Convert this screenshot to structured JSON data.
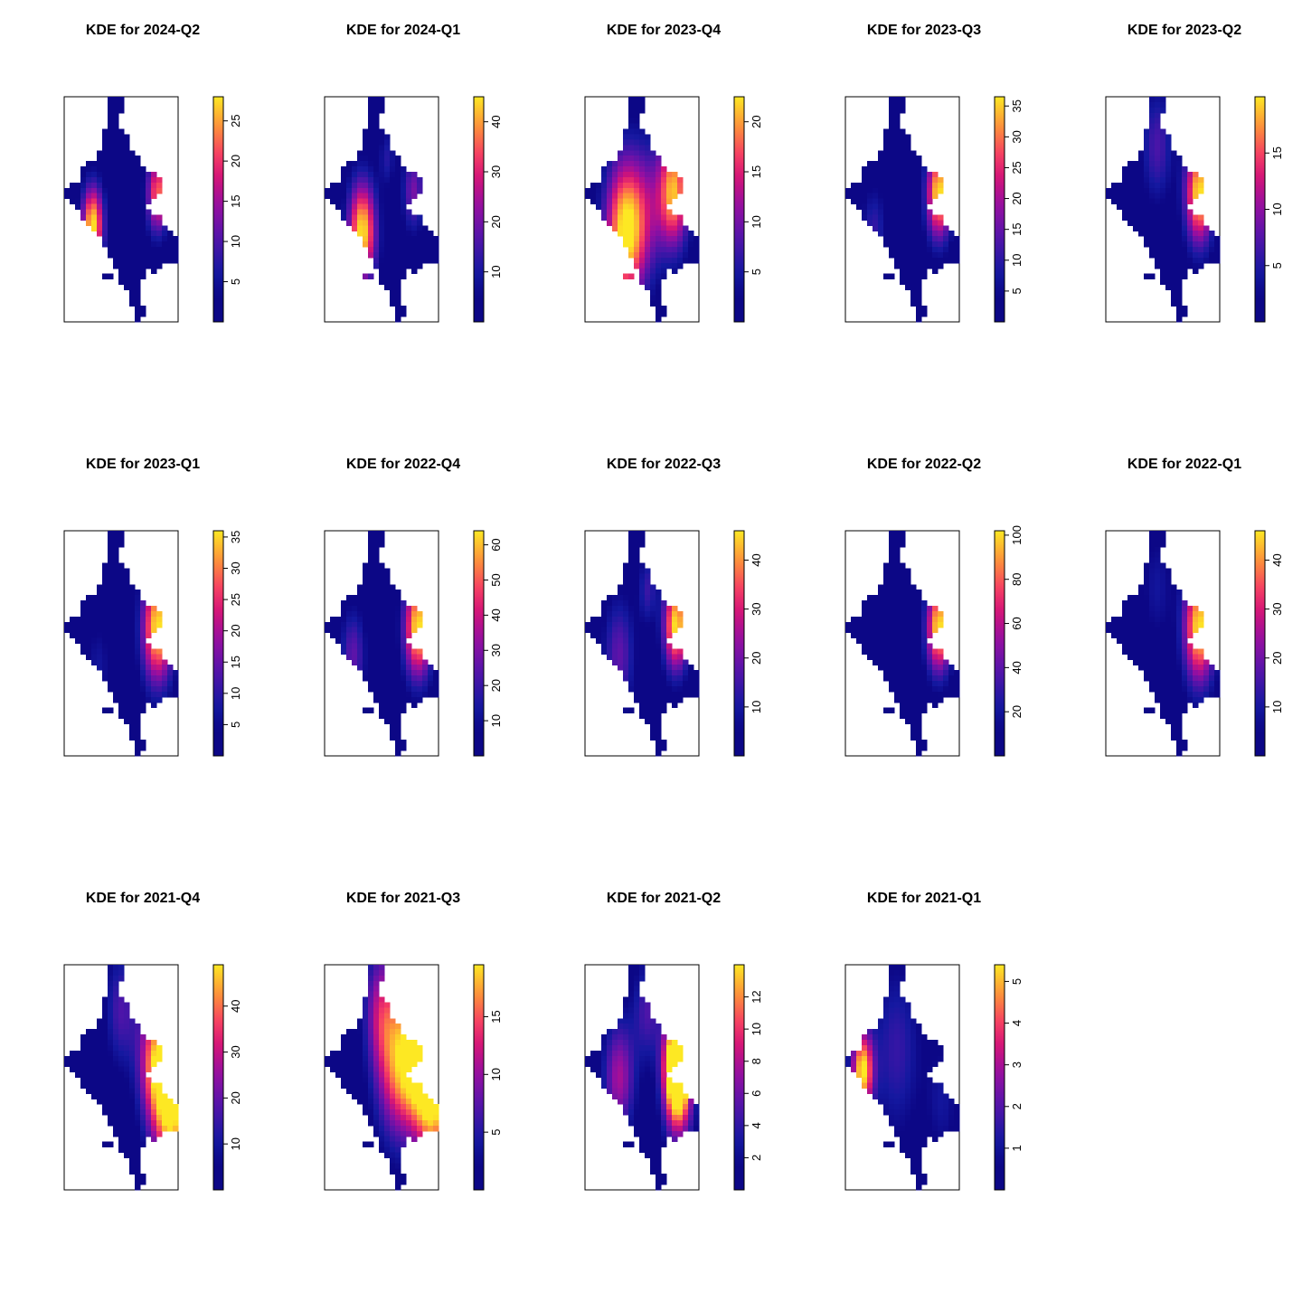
{
  "chart_data": [
    {
      "type": "heatmap",
      "title": "KDE for 2024-Q2",
      "ticks": [
        5,
        10,
        15,
        20,
        25
      ],
      "zlim": [
        0,
        28
      ],
      "hotspots": [
        {
          "x": 0.25,
          "y": 0.57,
          "s": 0.07,
          "w": 1.0
        },
        {
          "x": 0.82,
          "y": 0.43,
          "s": 0.07,
          "w": 0.8
        }
      ]
    },
    {
      "type": "heatmap",
      "title": "KDE for 2024-Q1",
      "ticks": [
        10,
        20,
        30,
        40
      ],
      "zlim": [
        0,
        45
      ],
      "hotspots": [
        {
          "x": 0.33,
          "y": 0.6,
          "s": 0.09,
          "w": 1.0
        },
        {
          "x": 0.78,
          "y": 0.42,
          "s": 0.07,
          "w": 0.45
        },
        {
          "x": 0.55,
          "y": 0.27,
          "s": 0.05,
          "w": 0.25
        }
      ]
    },
    {
      "type": "heatmap",
      "title": "KDE for 2023-Q4",
      "ticks": [
        5,
        10,
        15,
        20
      ],
      "zlim": [
        0,
        22.5
      ],
      "hotspots": [
        {
          "x": 0.35,
          "y": 0.6,
          "s": 0.13,
          "w": 1.0
        },
        {
          "x": 0.78,
          "y": 0.42,
          "s": 0.1,
          "w": 0.9
        },
        {
          "x": 0.55,
          "y": 0.5,
          "s": 0.12,
          "w": 0.3
        }
      ]
    },
    {
      "type": "heatmap",
      "title": "KDE for 2023-Q3",
      "ticks": [
        5,
        10,
        15,
        20,
        25,
        30,
        35
      ],
      "zlim": [
        0,
        36.5
      ],
      "hotspots": [
        {
          "x": 0.82,
          "y": 0.43,
          "s": 0.08,
          "w": 1.0
        },
        {
          "x": 0.25,
          "y": 0.6,
          "s": 0.08,
          "w": 0.3
        }
      ]
    },
    {
      "type": "heatmap",
      "title": "KDE for 2023-Q2",
      "ticks": [
        5,
        10,
        15
      ],
      "zlim": [
        0,
        20
      ],
      "hotspots": [
        {
          "x": 0.82,
          "y": 0.43,
          "s": 0.09,
          "w": 1.0
        },
        {
          "x": 0.45,
          "y": 0.22,
          "s": 0.1,
          "w": 0.35
        }
      ]
    },
    {
      "type": "heatmap",
      "title": "KDE for 2023-Q1",
      "ticks": [
        5,
        10,
        15,
        20,
        25,
        30,
        35
      ],
      "zlim": [
        0,
        36
      ],
      "hotspots": [
        {
          "x": 0.82,
          "y": 0.43,
          "s": 0.1,
          "w": 1.0
        },
        {
          "x": 0.3,
          "y": 0.6,
          "s": 0.08,
          "w": 0.2
        }
      ]
    },
    {
      "type": "heatmap",
      "title": "KDE for 2022-Q4",
      "ticks": [
        10,
        20,
        30,
        40,
        50,
        60
      ],
      "zlim": [
        0,
        64
      ],
      "hotspots": [
        {
          "x": 0.82,
          "y": 0.43,
          "s": 0.09,
          "w": 1.0
        },
        {
          "x": 0.25,
          "y": 0.55,
          "s": 0.08,
          "w": 0.4
        }
      ]
    },
    {
      "type": "heatmap",
      "title": "KDE for 2022-Q3",
      "ticks": [
        10,
        20,
        30,
        40
      ],
      "zlim": [
        0,
        46
      ],
      "hotspots": [
        {
          "x": 0.8,
          "y": 0.42,
          "s": 0.08,
          "w": 1.0
        },
        {
          "x": 0.3,
          "y": 0.55,
          "s": 0.1,
          "w": 0.4
        },
        {
          "x": 0.55,
          "y": 0.26,
          "s": 0.06,
          "w": 0.3
        }
      ]
    },
    {
      "type": "heatmap",
      "title": "KDE for 2022-Q2",
      "ticks": [
        20,
        40,
        60,
        80,
        100
      ],
      "zlim": [
        0,
        102
      ],
      "hotspots": [
        {
          "x": 0.82,
          "y": 0.43,
          "s": 0.08,
          "w": 1.0
        }
      ]
    },
    {
      "type": "heatmap",
      "title": "KDE for 2022-Q1",
      "ticks": [
        10,
        20,
        30,
        40
      ],
      "zlim": [
        0,
        46
      ],
      "hotspots": [
        {
          "x": 0.82,
          "y": 0.43,
          "s": 0.1,
          "w": 1.0
        },
        {
          "x": 0.45,
          "y": 0.25,
          "s": 0.1,
          "w": 0.2
        }
      ]
    },
    {
      "type": "heatmap",
      "title": "KDE for 2021-Q4",
      "ticks": [
        10,
        20,
        30,
        40
      ],
      "zlim": [
        0,
        49
      ],
      "hotspots": [
        {
          "x": 0.95,
          "y": 0.62,
          "s": 0.12,
          "w": 1.0
        },
        {
          "x": 0.8,
          "y": 0.42,
          "s": 0.11,
          "w": 0.75
        },
        {
          "x": 0.5,
          "y": 0.2,
          "s": 0.1,
          "w": 0.35
        }
      ]
    },
    {
      "type": "heatmap",
      "title": "KDE for 2021-Q3",
      "ticks": [
        5,
        10,
        15
      ],
      "zlim": [
        0,
        19.5
      ],
      "hotspots": [
        {
          "x": 0.8,
          "y": 0.4,
          "s": 0.13,
          "w": 1.0
        },
        {
          "x": 0.97,
          "y": 0.6,
          "s": 0.11,
          "w": 0.85
        },
        {
          "x": 0.5,
          "y": 0.2,
          "s": 0.11,
          "w": 0.55
        },
        {
          "x": 0.6,
          "y": 0.5,
          "s": 0.12,
          "w": 0.45
        }
      ]
    },
    {
      "type": "heatmap",
      "title": "KDE for 2021-Q2",
      "ticks": [
        2,
        4,
        6,
        8,
        10,
        12
      ],
      "zlim": [
        0,
        14
      ],
      "hotspots": [
        {
          "x": 0.8,
          "y": 0.42,
          "s": 0.08,
          "w": 1.0
        },
        {
          "x": 0.82,
          "y": 0.56,
          "s": 0.09,
          "w": 0.85
        },
        {
          "x": 0.3,
          "y": 0.5,
          "s": 0.1,
          "w": 0.55
        },
        {
          "x": 0.55,
          "y": 0.2,
          "s": 0.09,
          "w": 0.35
        }
      ]
    },
    {
      "type": "heatmap",
      "title": "KDE for 2021-Q1",
      "ticks": [
        1,
        2,
        3,
        4,
        5
      ],
      "zlim": [
        0,
        5.4
      ],
      "hotspots": [
        {
          "x": 0.15,
          "y": 0.47,
          "s": 0.07,
          "w": 1.0
        },
        {
          "x": 0.45,
          "y": 0.38,
          "s": 0.15,
          "w": 0.3
        },
        {
          "x": 0.85,
          "y": 0.6,
          "s": 0.1,
          "w": 0.2
        }
      ]
    }
  ]
}
